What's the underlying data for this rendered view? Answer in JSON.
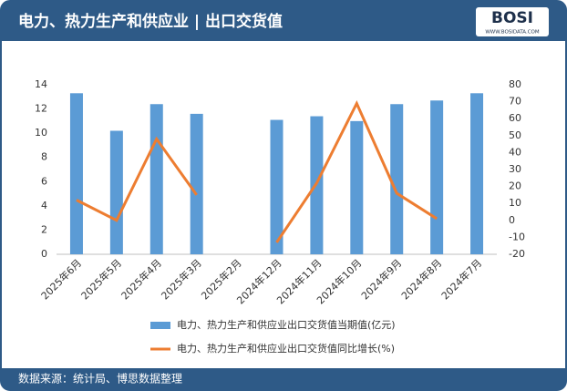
{
  "chart_data": {
    "type": "bar",
    "title": "电力、热力生产和供应业 | 出口交货值",
    "logo": {
      "name": "BOSI",
      "url": "WWW.BOSIDATA.COM"
    },
    "source": "数据来源：统计局、博思数据整理",
    "categories": [
      "2025年6月",
      "2025年5月",
      "2025年4月",
      "2025年3月",
      "2025年2月",
      "2024年12月",
      "2024年11月",
      "2024年10月",
      "2024年9月",
      "2024年8月",
      "2024年7月"
    ],
    "series": [
      {
        "name": "电力、热力生产和供应业出口交货值当期值(亿元)",
        "type": "bar",
        "color": "#5b9bd5",
        "values": [
          13.3,
          10.2,
          12.4,
          11.6,
          null,
          11.1,
          11.4,
          11.0,
          12.4,
          12.7,
          13.3
        ]
      },
      {
        "name": "电力、热力生产和供应业出口交货值同比增长(%)",
        "type": "line",
        "axis": "y2",
        "color": "#ed7d31",
        "values": [
          12,
          0,
          48,
          15,
          null,
          -13,
          22,
          69,
          16,
          1,
          null
        ]
      }
    ],
    "ylim": [
      0,
      14
    ],
    "yticks": [
      0,
      2,
      4,
      6,
      8,
      10,
      12,
      14
    ],
    "y2lim": [
      -20,
      80
    ],
    "y2ticks": [
      -20,
      -10,
      0,
      10,
      20,
      30,
      40,
      50,
      60,
      70,
      80
    ],
    "grid": false
  }
}
